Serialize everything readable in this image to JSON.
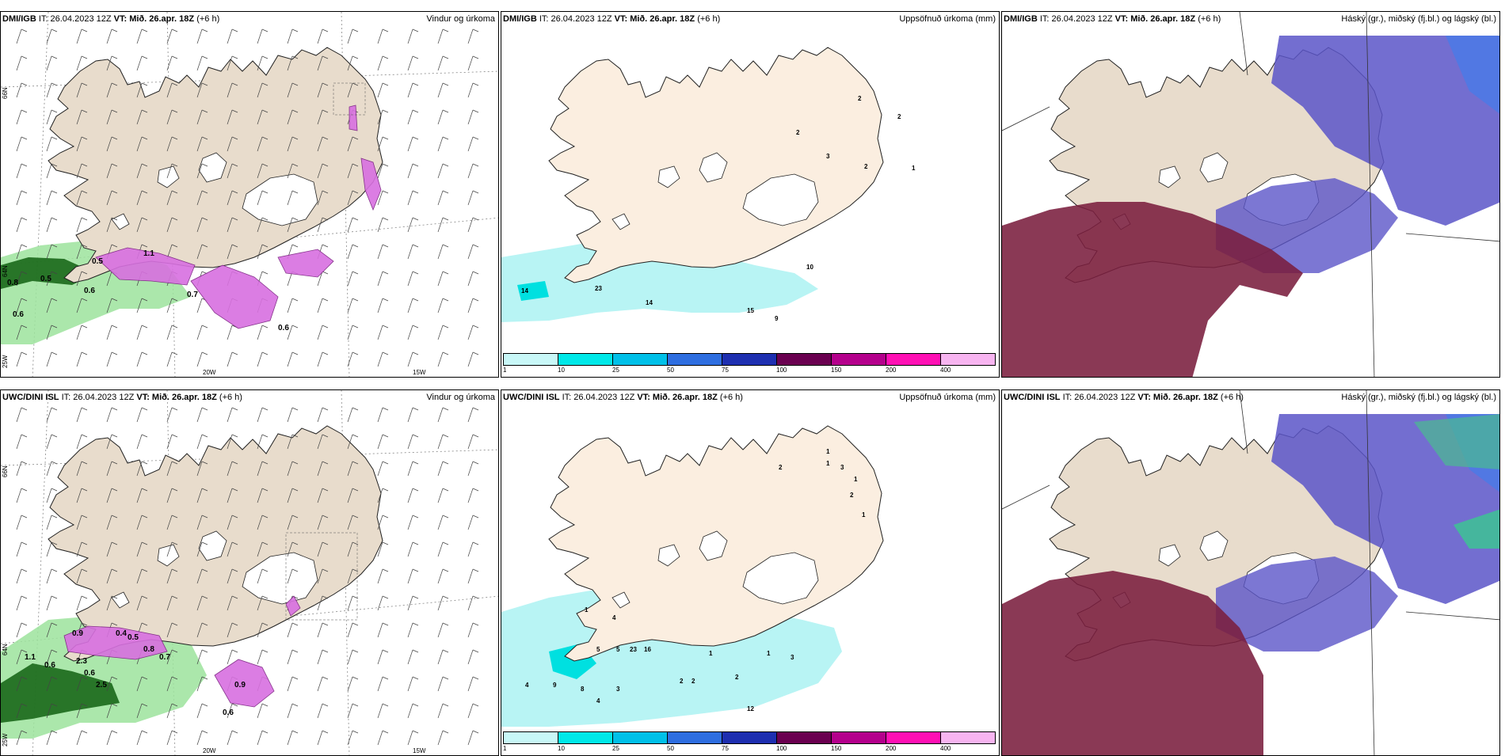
{
  "panels": [
    {
      "model": "DMI/IGB",
      "it": "IT: 26.04.2023 12Z",
      "vt": "VT: Mið. 26.apr. 18Z",
      "lead": "(+6 h)",
      "title": "Vindur og úrkoma"
    },
    {
      "model": "DMI/IGB",
      "it": "IT: 26.04.2023 12Z",
      "vt": "VT: Mið. 26.apr. 18Z",
      "lead": "(+6 h)",
      "title": "Uppsöfnuð úrkoma (mm)"
    },
    {
      "model": "DMI/IGB",
      "it": "IT: 26.04.2023 12Z",
      "vt": "VT: Mið. 26.apr. 18Z",
      "lead": "(+6 h)",
      "title": "Háský (gr.), miðský (fj.bl.) og lágský (bl.)"
    },
    {
      "model": "UWC/DINI ISL",
      "it": "IT: 26.04.2023 12Z",
      "vt": "VT: Mið. 26.apr. 18Z",
      "lead": "(+6 h)",
      "title": "Vindur og úrkoma"
    },
    {
      "model": "UWC/DINI ISL",
      "it": "IT: 26.04.2023 12Z",
      "vt": "VT: Mið. 26.apr. 18Z",
      "lead": "(+6 h)",
      "title": "Uppsöfnuð úrkoma (mm)"
    },
    {
      "model": "UWC/DINI ISL",
      "it": "IT: 26.04.2023 12Z",
      "vt": "VT: Mið. 26.apr. 18Z",
      "lead": "(+6 h)",
      "title": "Háský (gr.), miðský (fj.bl.) og lágský (bl.)"
    }
  ],
  "axis_labels": {
    "lat66": "66N",
    "lat64": "64N",
    "lon25": "25W",
    "lon20": "20W",
    "lon15": "15W"
  },
  "legend": {
    "labels": [
      "1",
      "10",
      "25",
      "50",
      "75",
      "100",
      "150",
      "200",
      "400"
    ],
    "colors": [
      "#c8f7f7",
      "#00e8e8",
      "#00c0e8",
      "#2e6ee0",
      "#1e2fb0",
      "#6a0050",
      "#b4008c",
      "#ff10b4",
      "#f7b4f0"
    ]
  },
  "precip_values_top": [
    "2",
    "2",
    "2",
    "3",
    "2",
    "1",
    "14",
    "23",
    "14",
    "10",
    "15",
    "9"
  ],
  "precip_values_bottom": [
    "1",
    "1",
    "3",
    "1",
    "2",
    "1",
    "2",
    "1",
    "4",
    "5",
    "5",
    "23",
    "16",
    "9",
    "8",
    "3",
    "4",
    "4",
    "2",
    "2",
    "1",
    "2",
    "1",
    "3",
    "12"
  ],
  "rain_values_top": [
    "0.8",
    "0.5",
    "0.6",
    "0.5",
    "1.1",
    "0.6",
    "0.7",
    "0.6"
  ],
  "rain_values_bottom": [
    "1.1",
    "0.6",
    "2.3",
    "0.6",
    "2.5",
    "0.9",
    "0.8",
    "0.7",
    "0.6",
    "0.9",
    "0.4",
    "0.5"
  ],
  "colors": {
    "land": "#e8dccc",
    "land_precip": "#fbeee0",
    "sea": "#ffffff",
    "magenta": "#d870e0",
    "green_light": "#9ce39c",
    "green_dark": "#106010",
    "high_cloud": "#7a1e3e",
    "mid_cloud": "#5b55c8",
    "low_cloud": "#3a7ef0"
  }
}
